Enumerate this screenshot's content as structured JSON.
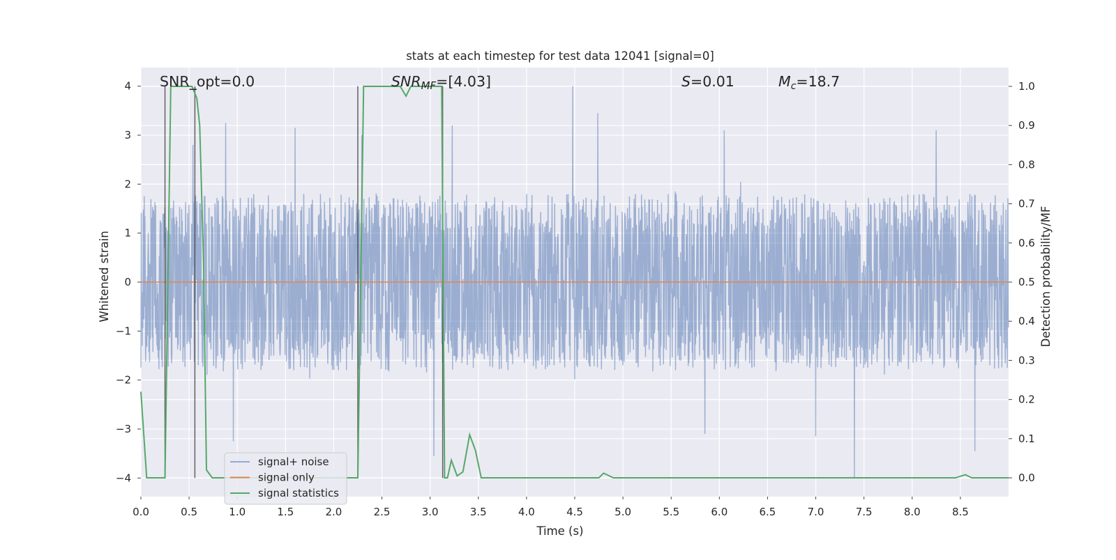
{
  "chart_data": {
    "type": "line",
    "title": "stats at each timestep for test data 12041 [signal=0]",
    "xlabel": "Time (s)",
    "ylabel_left": "Whitened strain",
    "ylabel_right": "Detection probability/MF",
    "xlim": [
      0,
      9.0
    ],
    "ylim_left": [
      -4.38,
      4.38
    ],
    "ylim_right": [
      -0.048,
      1.048
    ],
    "x_ticks": [
      0.0,
      0.5,
      1.0,
      1.5,
      2.0,
      2.5,
      3.0,
      3.5,
      4.0,
      4.5,
      5.0,
      5.5,
      6.0,
      6.5,
      7.0,
      7.5,
      8.0,
      8.5
    ],
    "x_tick_labels": [
      "0.0",
      "0.5",
      "1.0",
      "1.5",
      "2.0",
      "2.5",
      "3.0",
      "3.5",
      "4.0",
      "4.5",
      "5.0",
      "5.5",
      "6.0",
      "6.5",
      "7.0",
      "7.5",
      "8.0",
      "8.5"
    ],
    "y_ticks_left": [
      4,
      3,
      2,
      1,
      0,
      -1,
      -2,
      -3,
      -4
    ],
    "y_tick_labels_left": [
      "4",
      "3",
      "2",
      "1",
      "0",
      "−1",
      "−2",
      "−3",
      "−4"
    ],
    "y_ticks_right": [
      1.0,
      0.9,
      0.8,
      0.7,
      0.6,
      0.5,
      0.4,
      0.3,
      0.2,
      0.1,
      0.0
    ],
    "y_tick_labels_right": [
      "1.0",
      "0.9",
      "0.8",
      "0.7",
      "0.6",
      "0.5",
      "0.4",
      "0.3",
      "0.2",
      "0.1",
      "0.0"
    ],
    "grid": true,
    "legend_position": "lower-left",
    "colors": {
      "background": "#eaeaf2",
      "grid": "#ffffff",
      "signal_noise": "#4c72b0",
      "signal_only": "#dd8452",
      "signal_statistics": "#55a868",
      "event_lines": "#333333"
    },
    "annotations": {
      "snr_opt": "SNR_opt=0.0",
      "snr_mf_base": "SNR",
      "snr_mf_sub": "MF",
      "snr_mf_rest": "=[4.03]",
      "s_sym": "S",
      "s_rest": "=0.01",
      "mc_base": "M",
      "mc_sub": "c",
      "mc_rest": "=18.7"
    },
    "series": [
      {
        "name": "signal+ noise",
        "axis": "left",
        "kind": "dense-noise",
        "x_range": [
          0,
          9.0
        ],
        "typical_envelope": [
          -1.6,
          1.6
        ],
        "notable_peaks": [
          {
            "x": 0.54,
            "y": 2.8
          },
          {
            "x": 0.88,
            "y": 3.25
          },
          {
            "x": 1.6,
            "y": 3.15
          },
          {
            "x": 2.29,
            "y": 3.0
          },
          {
            "x": 3.23,
            "y": 3.2
          },
          {
            "x": 4.48,
            "y": 4.0
          },
          {
            "x": 4.74,
            "y": 3.45
          },
          {
            "x": 6.05,
            "y": 3.1
          },
          {
            "x": 8.25,
            "y": 3.1
          },
          {
            "x": 0.96,
            "y": -3.25
          },
          {
            "x": 3.04,
            "y": -3.55
          },
          {
            "x": 7.4,
            "y": -4.0
          },
          {
            "x": 7.0,
            "y": -3.15
          },
          {
            "x": 8.65,
            "y": -3.45
          },
          {
            "x": 5.85,
            "y": -3.1
          }
        ]
      },
      {
        "name": "signal only",
        "axis": "left",
        "x": [
          0,
          9.0
        ],
        "y": [
          0,
          0
        ]
      },
      {
        "name": "signal statistics",
        "axis": "right",
        "x": [
          0.0,
          0.06,
          0.25,
          0.31,
          0.53,
          0.58,
          0.61,
          0.65,
          0.68,
          0.74,
          0.8,
          2.2,
          2.25,
          2.31,
          2.35,
          2.69,
          2.75,
          2.8,
          3.12,
          3.15,
          3.18,
          3.22,
          3.28,
          3.34,
          3.41,
          3.47,
          3.53,
          4.75,
          4.8,
          4.9,
          8.45,
          8.55,
          8.62,
          9.0
        ],
        "y": [
          0.22,
          0.0,
          0.0,
          1.0,
          1.0,
          0.97,
          0.9,
          0.55,
          0.02,
          0.0,
          0.0,
          0.0,
          0.0,
          1.0,
          1.0,
          1.0,
          0.975,
          1.0,
          1.0,
          0.0,
          0.0,
          0.045,
          0.005,
          0.015,
          0.11,
          0.07,
          0.0,
          0.0,
          0.012,
          0.0,
          0.0,
          0.008,
          0.0,
          0.0
        ]
      }
    ],
    "event_lines_x": [
      0.25,
      0.56,
      2.25,
      3.13
    ],
    "legend": [
      "signal+ noise",
      "signal only",
      "signal statistics"
    ]
  }
}
